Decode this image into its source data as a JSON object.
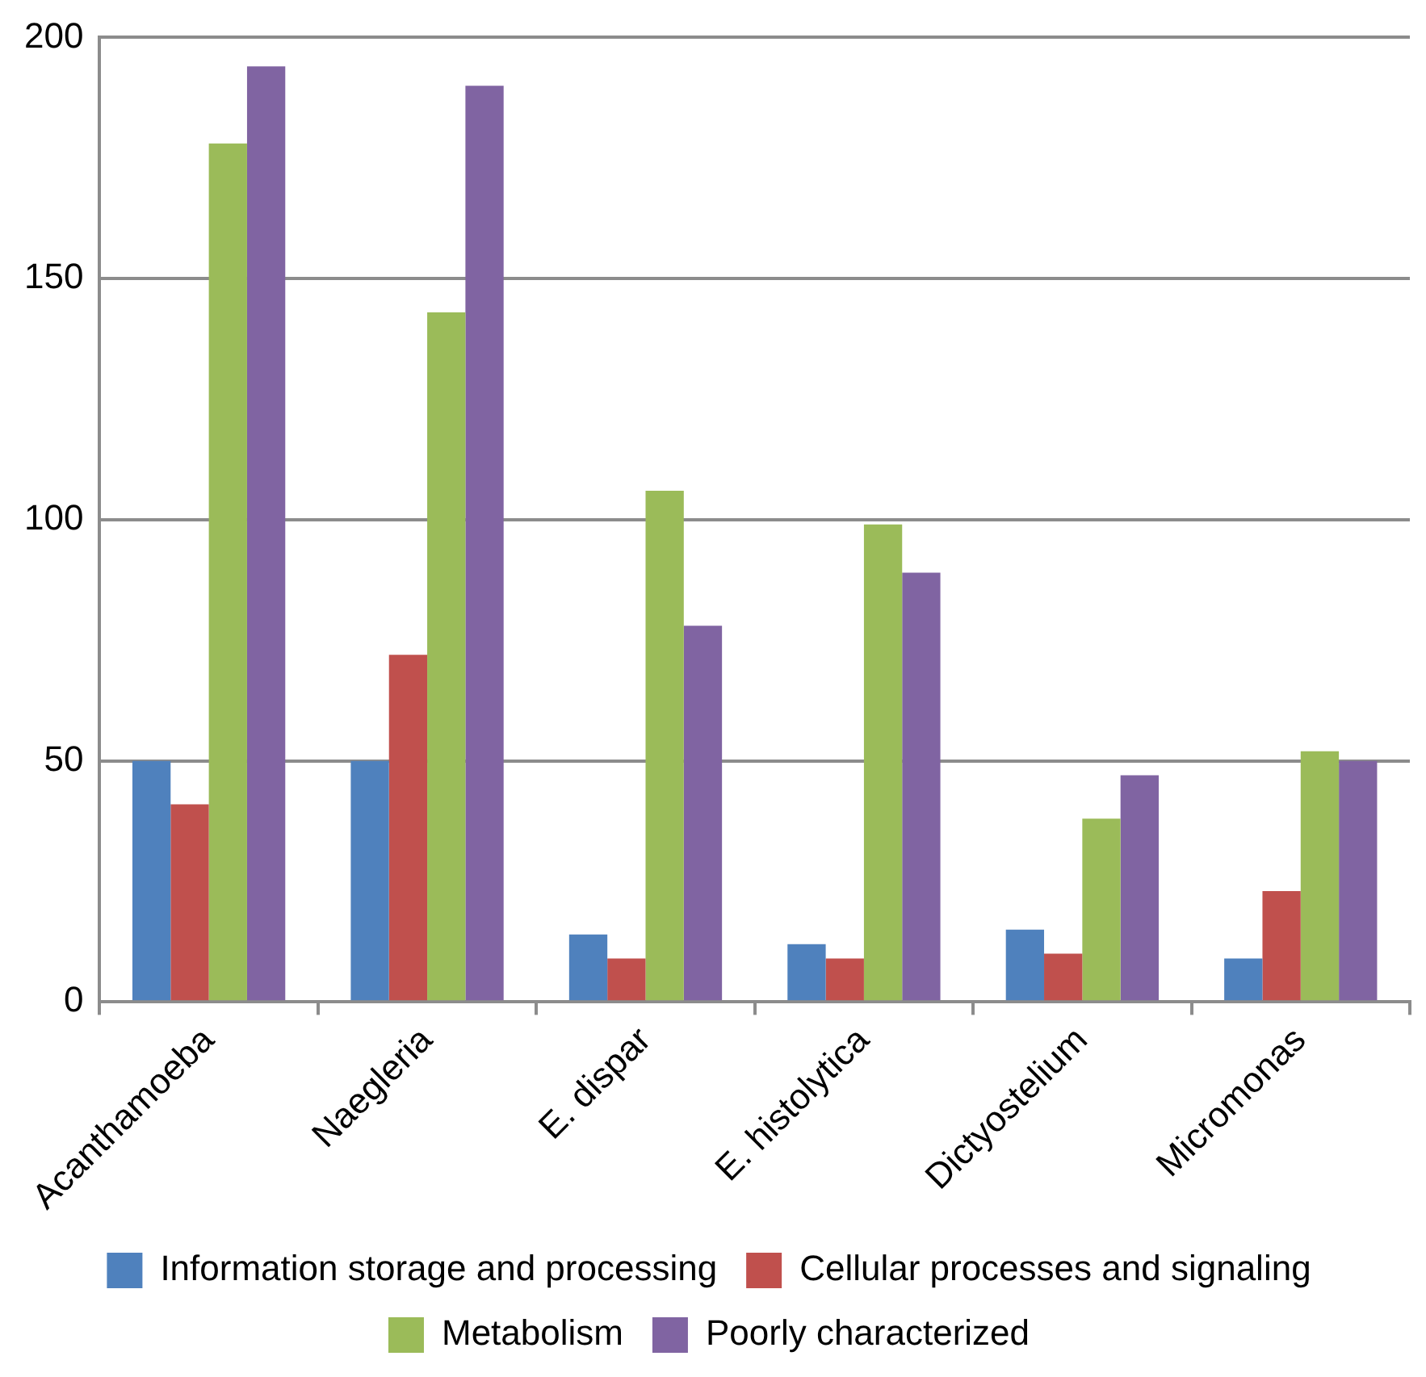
{
  "chart_data": {
    "type": "bar",
    "categories": [
      "Acanthamoeba",
      "Naegleria",
      "E. dispar",
      "E. histolytica",
      "Dictyostelium",
      "Micromonas"
    ],
    "series": [
      {
        "name": "Information storage and processing",
        "color": "#4f81bd",
        "values": [
          50,
          50,
          14,
          12,
          15,
          9
        ]
      },
      {
        "name": "Cellular processes and signaling",
        "color": "#c0504d",
        "values": [
          41,
          72,
          9,
          9,
          10,
          23
        ]
      },
      {
        "name": "Metabolism",
        "color": "#9bbb59",
        "values": [
          178,
          143,
          106,
          99,
          38,
          52
        ]
      },
      {
        "name": "Poorly characterized",
        "color": "#8064a2",
        "values": [
          194,
          190,
          78,
          89,
          47,
          50
        ]
      }
    ],
    "ylim": [
      0,
      200
    ],
    "yticks": [
      0,
      50,
      100,
      150,
      200
    ],
    "grid": "y",
    "legend": "bottom"
  }
}
